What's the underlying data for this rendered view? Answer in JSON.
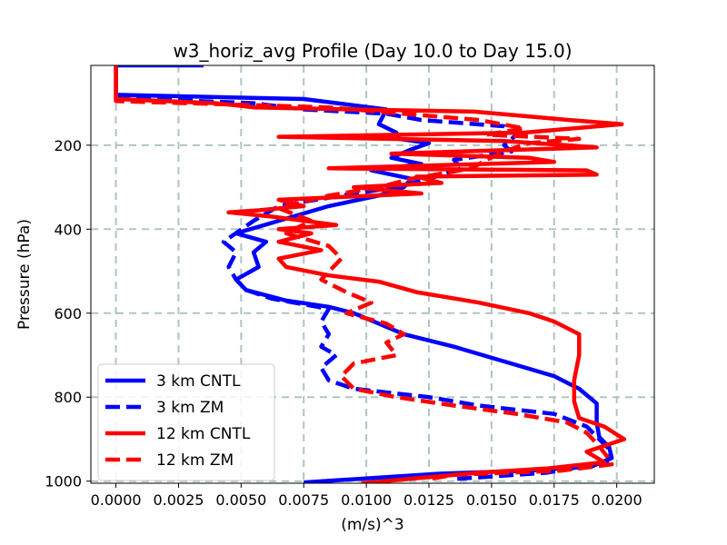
{
  "chart_data": {
    "type": "line",
    "title": "w3_horiz_avg Profile (Day 10.0 to Day 15.0)",
    "xlabel": "(m/s)^3",
    "ylabel": "Pressure (hPa)",
    "xlim": [
      -0.001,
      0.0215
    ],
    "ylim": [
      1005,
      10
    ],
    "y_inverted": true,
    "grid": true,
    "legend_position": "lower-left",
    "xticks": [
      0.0,
      0.0025,
      0.005,
      0.0075,
      0.01,
      0.0125,
      0.015,
      0.0175,
      0.02
    ],
    "xtick_labels": [
      "0.0000",
      "0.0025",
      "0.0050",
      "0.0075",
      "0.0100",
      "0.0125",
      "0.0150",
      "0.0175",
      "0.0200"
    ],
    "yticks": [
      200,
      400,
      600,
      800,
      1000
    ],
    "ytick_labels": [
      "200",
      "400",
      "600",
      "800",
      "1000"
    ],
    "series": [
      {
        "name": "3 km CNTL",
        "color": "#0000ff",
        "style": "solid",
        "points": [
          [
            0.0035,
            10
          ],
          [
            0.0,
            10
          ],
          [
            0.0,
            80
          ],
          [
            0.0075,
            90
          ],
          [
            0.0108,
            115
          ],
          [
            0.0105,
            150
          ],
          [
            0.0112,
            170
          ],
          [
            0.0113,
            185
          ],
          [
            0.0125,
            195
          ],
          [
            0.0118,
            210
          ],
          [
            0.011,
            230
          ],
          [
            0.0122,
            245
          ],
          [
            0.0102,
            260
          ],
          [
            0.0118,
            280
          ],
          [
            0.0115,
            300
          ],
          [
            0.0105,
            320
          ],
          [
            0.0085,
            345
          ],
          [
            0.0065,
            380
          ],
          [
            0.0048,
            410
          ],
          [
            0.006,
            430
          ],
          [
            0.0055,
            455
          ],
          [
            0.0057,
            490
          ],
          [
            0.0048,
            520
          ],
          [
            0.0052,
            545
          ],
          [
            0.0068,
            570
          ],
          [
            0.0085,
            585
          ],
          [
            0.0095,
            600
          ],
          [
            0.0105,
            625
          ],
          [
            0.0115,
            650
          ],
          [
            0.0135,
            680
          ],
          [
            0.0155,
            715
          ],
          [
            0.0175,
            750
          ],
          [
            0.0185,
            780
          ],
          [
            0.0192,
            815
          ],
          [
            0.0192,
            860
          ],
          [
            0.0193,
            895
          ],
          [
            0.0197,
            920
          ],
          [
            0.0198,
            945
          ],
          [
            0.019,
            965
          ],
          [
            0.0165,
            975
          ],
          [
            0.013,
            982
          ],
          [
            0.0075,
            1003
          ]
        ]
      },
      {
        "name": "3 km ZM",
        "color": "#0000ff",
        "style": "dashed",
        "points": [
          [
            0.0,
            80
          ],
          [
            0.0005,
            88
          ],
          [
            0.0055,
            100
          ],
          [
            0.0075,
            115
          ],
          [
            0.0108,
            125
          ],
          [
            0.0122,
            140
          ],
          [
            0.0155,
            155
          ],
          [
            0.016,
            175
          ],
          [
            0.0155,
            200
          ],
          [
            0.0158,
            215
          ],
          [
            0.0135,
            235
          ],
          [
            0.0138,
            255
          ],
          [
            0.0125,
            280
          ],
          [
            0.0112,
            300
          ],
          [
            0.009,
            320
          ],
          [
            0.0065,
            345
          ],
          [
            0.0055,
            380
          ],
          [
            0.0043,
            430
          ],
          [
            0.0048,
            455
          ],
          [
            0.0045,
            490
          ],
          [
            0.0048,
            520
          ],
          [
            0.0052,
            545
          ],
          [
            0.0062,
            565
          ],
          [
            0.0085,
            590
          ],
          [
            0.0082,
            620
          ],
          [
            0.0085,
            650
          ],
          [
            0.0082,
            680
          ],
          [
            0.0088,
            700
          ],
          [
            0.0082,
            730
          ],
          [
            0.0085,
            760
          ],
          [
            0.0095,
            780
          ],
          [
            0.0125,
            800
          ],
          [
            0.0145,
            820
          ],
          [
            0.0175,
            840
          ],
          [
            0.0188,
            870
          ],
          [
            0.0193,
            900
          ],
          [
            0.0198,
            930
          ],
          [
            0.0196,
            955
          ],
          [
            0.0172,
            980
          ],
          [
            0.0135,
            995
          ]
        ]
      },
      {
        "name": "12 km CNTL",
        "color": "#ff0000",
        "style": "solid",
        "points": [
          [
            0.0,
            10
          ],
          [
            0.0,
            90
          ],
          [
            0.004,
            100
          ],
          [
            0.0055,
            110
          ],
          [
            0.0095,
            115
          ],
          [
            0.0143,
            120
          ],
          [
            0.0181,
            140
          ],
          [
            0.0202,
            150
          ],
          [
            0.0163,
            170
          ],
          [
            0.0065,
            180
          ],
          [
            0.0155,
            190
          ],
          [
            0.0192,
            205
          ],
          [
            0.011,
            220
          ],
          [
            0.0165,
            230
          ],
          [
            0.0175,
            240
          ],
          [
            0.0115,
            250
          ],
          [
            0.0085,
            255
          ],
          [
            0.0188,
            260
          ],
          [
            0.0192,
            270
          ],
          [
            0.012,
            275
          ],
          [
            0.013,
            290
          ],
          [
            0.0095,
            300
          ],
          [
            0.0122,
            315
          ],
          [
            0.0065,
            330
          ],
          [
            0.0075,
            345
          ],
          [
            0.0057,
            355
          ],
          [
            0.0045,
            360
          ],
          [
            0.0062,
            370
          ],
          [
            0.0088,
            390
          ],
          [
            0.0065,
            400
          ],
          [
            0.0078,
            410
          ],
          [
            0.0065,
            430
          ],
          [
            0.0082,
            450
          ],
          [
            0.0065,
            470
          ],
          [
            0.0068,
            490
          ],
          [
            0.0085,
            510
          ],
          [
            0.0105,
            525
          ],
          [
            0.012,
            550
          ],
          [
            0.0145,
            575
          ],
          [
            0.0165,
            600
          ],
          [
            0.0175,
            620
          ],
          [
            0.0185,
            650
          ],
          [
            0.0185,
            700
          ],
          [
            0.0183,
            760
          ],
          [
            0.0183,
            810
          ],
          [
            0.0185,
            850
          ],
          [
            0.0195,
            870
          ],
          [
            0.0203,
            900
          ],
          [
            0.0188,
            930
          ],
          [
            0.0195,
            955
          ],
          [
            0.0172,
            970
          ],
          [
            0.0145,
            980
          ],
          [
            0.0098,
            1005
          ]
        ]
      },
      {
        "name": "12 km ZM",
        "color": "#ff0000",
        "style": "dashed",
        "points": [
          [
            0.0,
            80
          ],
          [
            0.0,
            95
          ],
          [
            0.0085,
            110
          ],
          [
            0.0115,
            125
          ],
          [
            0.0145,
            140
          ],
          [
            0.0163,
            160
          ],
          [
            0.0148,
            175
          ],
          [
            0.0185,
            185
          ],
          [
            0.0165,
            195
          ],
          [
            0.0155,
            215
          ],
          [
            0.0148,
            235
          ],
          [
            0.0142,
            255
          ],
          [
            0.0118,
            280
          ],
          [
            0.0105,
            300
          ],
          [
            0.0085,
            320
          ],
          [
            0.0065,
            350
          ],
          [
            0.0078,
            380
          ],
          [
            0.0068,
            410
          ],
          [
            0.0085,
            440
          ],
          [
            0.009,
            470
          ],
          [
            0.0082,
            520
          ],
          [
            0.0092,
            550
          ],
          [
            0.0102,
            575
          ],
          [
            0.0092,
            600
          ],
          [
            0.0108,
            625
          ],
          [
            0.0115,
            650
          ],
          [
            0.0108,
            670
          ],
          [
            0.0112,
            700
          ],
          [
            0.0095,
            720
          ],
          [
            0.009,
            750
          ],
          [
            0.0095,
            780
          ],
          [
            0.0112,
            800
          ],
          [
            0.0135,
            820
          ],
          [
            0.016,
            840
          ],
          [
            0.018,
            860
          ],
          [
            0.0188,
            885
          ],
          [
            0.0192,
            910
          ],
          [
            0.0196,
            940
          ],
          [
            0.0198,
            960
          ],
          [
            0.0178,
            975
          ],
          [
            0.0135,
            985
          ],
          [
            0.0125,
            995
          ]
        ]
      }
    ]
  }
}
